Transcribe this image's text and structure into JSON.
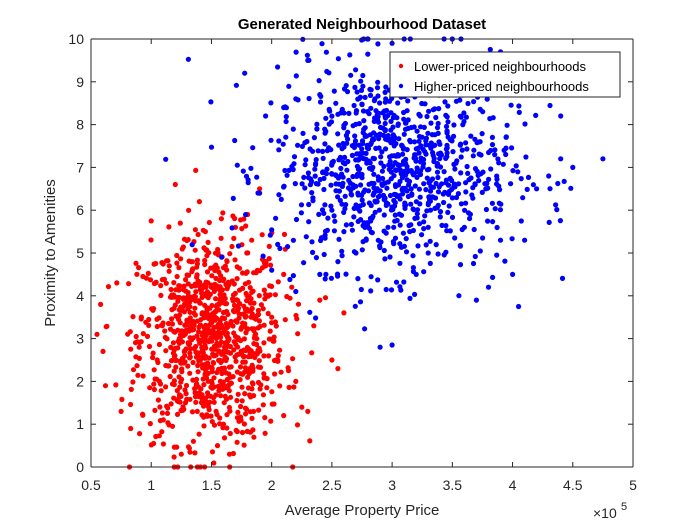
{
  "chart_data": {
    "type": "scatter",
    "title": "Generated Neighbourhood Dataset",
    "xlabel": "Average Property Price",
    "ylabel": "Proximity to Amenities",
    "x_exponent_base": "×10",
    "x_exponent_power": "5",
    "xlim": [
      0.5,
      5
    ],
    "ylim": [
      0,
      10
    ],
    "x_ticks": [
      "0.5",
      "1",
      "1.5",
      "2",
      "2.5",
      "3",
      "3.5",
      "4",
      "4.5",
      "5"
    ],
    "y_ticks": [
      "0",
      "1",
      "2",
      "3",
      "4",
      "5",
      "6",
      "7",
      "8",
      "9",
      "10"
    ],
    "grid": false,
    "legend_position": "top-right",
    "series": [
      {
        "name": "Lower-priced neighbourhoods",
        "color": "#ff0000",
        "count": 1000,
        "center": [
          1.5,
          3.0
        ],
        "spread": [
          0.3,
          1.2
        ],
        "points": [
          [
            0.55,
            3.1
          ],
          [
            0.58,
            3.8
          ],
          [
            0.6,
            2.7
          ],
          [
            0.62,
            1.9
          ],
          [
            0.75,
            1.3
          ],
          [
            0.83,
            0.9
          ],
          [
            0.9,
            2.8
          ],
          [
            1.0,
            5.75
          ],
          [
            1.02,
            0.55
          ],
          [
            1.05,
            2.5
          ],
          [
            1.1,
            1.1
          ],
          [
            1.15,
            4.7
          ],
          [
            1.2,
            6.6
          ],
          [
            1.22,
            0.0
          ],
          [
            1.25,
            0.3
          ],
          [
            1.35,
            0.6
          ],
          [
            1.4,
            6.2
          ],
          [
            1.45,
            5.5
          ],
          [
            1.5,
            4.2
          ],
          [
            1.5,
            2.0
          ],
          [
            1.55,
            0.5
          ],
          [
            1.6,
            1.0
          ],
          [
            1.65,
            0.3
          ],
          [
            1.7,
            5.6
          ],
          [
            1.8,
            5.9
          ],
          [
            1.85,
            1.3
          ],
          [
            1.9,
            6.5
          ],
          [
            1.95,
            4.8
          ],
          [
            2.0,
            3.5
          ],
          [
            2.05,
            2.5
          ],
          [
            2.1,
            1.2
          ],
          [
            2.2,
            2.0
          ],
          [
            2.25,
            1.4
          ],
          [
            2.3,
            1.3
          ],
          [
            2.35,
            3.3
          ],
          [
            2.4,
            3.9
          ],
          [
            2.5,
            2.5
          ],
          [
            2.55,
            2.3
          ],
          [
            2.6,
            3.6
          ],
          [
            2.1,
            4.5
          ]
        ]
      },
      {
        "name": "Higher-priced neighbourhoods",
        "color": "#0000ff",
        "count": 1000,
        "center": [
          3.0,
          7.0
        ],
        "spread": [
          0.5,
          1.2
        ],
        "points": [
          [
            1.9,
            6.4
          ],
          [
            2.0,
            4.6
          ],
          [
            2.05,
            5.2
          ],
          [
            2.2,
            4.1
          ],
          [
            2.4,
            4.5
          ],
          [
            2.45,
            4.5
          ],
          [
            2.5,
            6.0
          ],
          [
            2.6,
            5.5
          ],
          [
            2.7,
            5.0
          ],
          [
            2.8,
            10.0
          ],
          [
            2.9,
            2.8
          ],
          [
            3.0,
            2.85
          ],
          [
            3.1,
            10.0
          ],
          [
            3.2,
            4.5
          ],
          [
            3.3,
            5.0
          ],
          [
            3.4,
            9.5
          ],
          [
            3.5,
            10.0
          ],
          [
            3.6,
            5.6
          ],
          [
            3.7,
            3.9
          ],
          [
            3.8,
            4.2
          ],
          [
            3.9,
            5.3
          ],
          [
            4.0,
            4.5
          ],
          [
            4.05,
            3.75
          ],
          [
            4.1,
            5.3
          ],
          [
            4.2,
            6.5
          ],
          [
            4.3,
            6.8
          ],
          [
            4.4,
            7.2
          ],
          [
            4.5,
            7.0
          ],
          [
            4.75,
            7.2
          ],
          [
            2.3,
            9.5
          ],
          [
            2.4,
            8.7
          ],
          [
            2.2,
            8.6
          ],
          [
            3.0,
            9.9
          ],
          [
            3.5,
            9.5
          ],
          [
            3.9,
            9.7
          ],
          [
            1.95,
            8.2
          ],
          [
            2.1,
            8.4
          ],
          [
            3.3,
            5.6
          ],
          [
            2.55,
            4.8
          ],
          [
            4.4,
            8.2
          ]
        ]
      }
    ]
  }
}
